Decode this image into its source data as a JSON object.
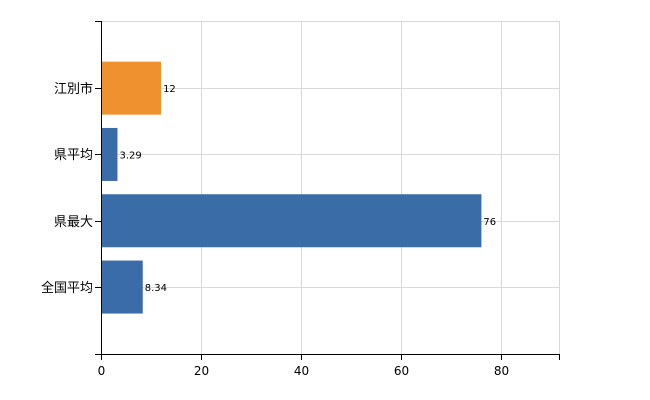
{
  "chart_data": {
    "type": "bar",
    "orientation": "horizontal",
    "categories": [
      "江別市",
      "県平均",
      "県最大",
      "全国平均"
    ],
    "values": [
      12,
      3.29,
      76,
      8.34
    ],
    "value_labels": [
      "12",
      "3.29",
      "76",
      "8.34"
    ],
    "bar_colors": [
      "#f0912f",
      "#3a6ca8",
      "#3a6ca8",
      "#3a6ca8"
    ],
    "title": "",
    "xlabel": "",
    "ylabel": "",
    "xlim": [
      0,
      91.5
    ],
    "x_ticks": [
      0,
      20,
      40,
      60,
      80
    ],
    "x_tick_labels": [
      "0",
      "20",
      "40",
      "60",
      "80"
    ],
    "grid": true,
    "legend": "none"
  }
}
